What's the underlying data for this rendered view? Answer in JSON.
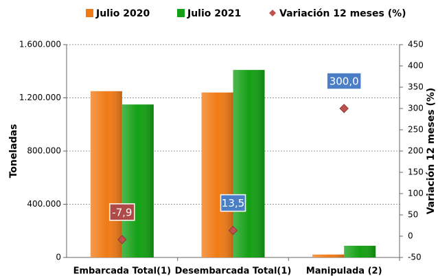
{
  "chart_data": {
    "type": "bar",
    "categories": [
      "Embarcada Total(1)",
      "Desembarcada Total(1)",
      "Manipulada (2)"
    ],
    "series": [
      {
        "name": "Julio 2020",
        "color": "#f07b16",
        "values": [
          1250000,
          1240000,
          22000
        ]
      },
      {
        "name": "Julio 2021",
        "color": "#14a014",
        "values": [
          1150000,
          1410000,
          88000
        ]
      },
      {
        "name": "Variación 12 meses (%)",
        "type": "scatter",
        "axis": "y2",
        "color": "#c0504d",
        "values": [
          -7.9,
          13.5,
          300.0
        ],
        "value_labels": [
          "-7,9",
          "13,5",
          "300,0"
        ]
      }
    ],
    "ylabel": "Toneladas",
    "y2label": "Variación 12 meses (%)",
    "ylim": [
      0,
      1600000
    ],
    "yticks": [
      0,
      {
        "value": 400000,
        "label": "400.000"
      },
      {
        "value": 800000,
        "label": "800.000"
      },
      {
        "value": 1200000,
        "label": "1.200.000"
      },
      {
        "value": 1600000,
        "label": "1.600.000"
      }
    ],
    "y2lim": [
      -50,
      450
    ],
    "y2ticks": [
      -50,
      0,
      50,
      100,
      150,
      200,
      250,
      300,
      350,
      400,
      450
    ],
    "grid": true,
    "legend": "top"
  }
}
